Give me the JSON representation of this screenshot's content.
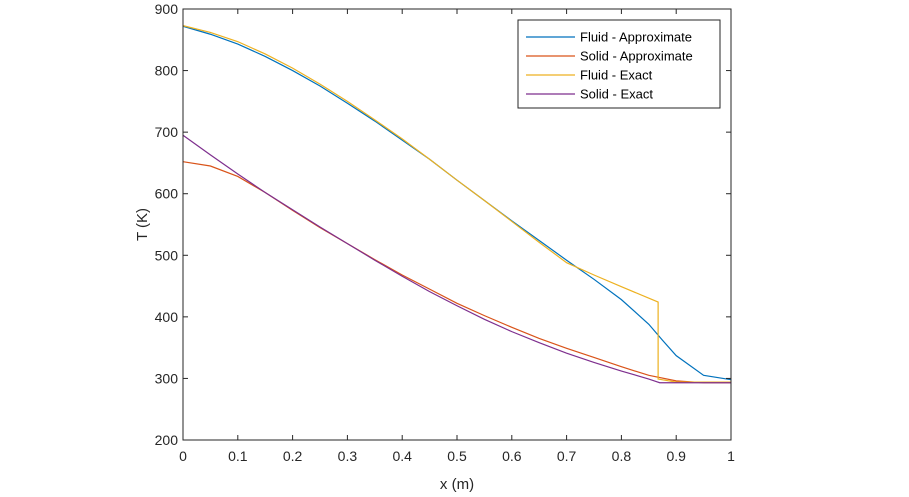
{
  "chart_data": {
    "type": "line",
    "title": "",
    "xlabel": "x (m)",
    "ylabel": "T (K)",
    "xlim": [
      0,
      1
    ],
    "ylim": [
      200,
      900
    ],
    "xticks": [
      0,
      0.1,
      0.2,
      0.3,
      0.4,
      0.5,
      0.6,
      0.7,
      0.8,
      0.9,
      1
    ],
    "xtick_labels": [
      "0",
      "0.1",
      "0.2",
      "0.3",
      "0.4",
      "0.5",
      "0.6",
      "0.7",
      "0.8",
      "0.9",
      "1"
    ],
    "yticks": [
      200,
      300,
      400,
      500,
      600,
      700,
      800,
      900
    ],
    "ytick_labels": [
      "200",
      "300",
      "400",
      "500",
      "600",
      "700",
      "800",
      "900"
    ],
    "grid": false,
    "legend_position": "top-right",
    "series": [
      {
        "name": "Fluid - Approximate",
        "color": "#0072BD",
        "x": [
          0,
          0.05,
          0.1,
          0.15,
          0.2,
          0.25,
          0.3,
          0.35,
          0.4,
          0.45,
          0.5,
          0.55,
          0.6,
          0.65,
          0.7,
          0.75,
          0.8,
          0.85,
          0.875,
          0.9,
          0.95,
          1.0
        ],
        "y": [
          872,
          859,
          843,
          823,
          800,
          775,
          747,
          718,
          687,
          656,
          622,
          589,
          556,
          524,
          492,
          461,
          428,
          388,
          362,
          337,
          305,
          298
        ]
      },
      {
        "name": "Solid - Approximate",
        "color": "#D95319",
        "x": [
          0,
          0.05,
          0.1,
          0.15,
          0.2,
          0.25,
          0.3,
          0.35,
          0.4,
          0.45,
          0.5,
          0.55,
          0.6,
          0.65,
          0.7,
          0.75,
          0.8,
          0.85,
          0.9,
          0.95,
          1.0
        ],
        "y": [
          652,
          645,
          628,
          602,
          573,
          545,
          519,
          493,
          468,
          445,
          422,
          402,
          383,
          365,
          349,
          334,
          319,
          305,
          296,
          293,
          293
        ]
      },
      {
        "name": "Fluid - Exact",
        "color": "#EDB120",
        "x": [
          0,
          0.05,
          0.1,
          0.15,
          0.2,
          0.25,
          0.3,
          0.35,
          0.4,
          0.45,
          0.5,
          0.55,
          0.6,
          0.65,
          0.7,
          0.75,
          0.8,
          0.867,
          0.867,
          0.9,
          1.0
        ],
        "y": [
          873,
          862,
          847,
          827,
          804,
          778,
          750,
          720,
          689,
          656,
          622,
          589,
          555,
          521,
          488,
          468,
          449,
          424,
          299,
          294,
          294
        ]
      },
      {
        "name": "Solid - Exact",
        "color": "#7E2F8E",
        "x": [
          0,
          0.05,
          0.1,
          0.15,
          0.2,
          0.25,
          0.3,
          0.35,
          0.4,
          0.45,
          0.5,
          0.55,
          0.6,
          0.65,
          0.7,
          0.75,
          0.8,
          0.85,
          0.87,
          0.9,
          1.0
        ],
        "y": [
          695,
          663,
          632,
          602,
          574,
          546,
          519,
          492,
          466,
          441,
          418,
          396,
          376,
          358,
          341,
          326,
          312,
          299,
          293,
          293,
          293
        ]
      }
    ]
  }
}
